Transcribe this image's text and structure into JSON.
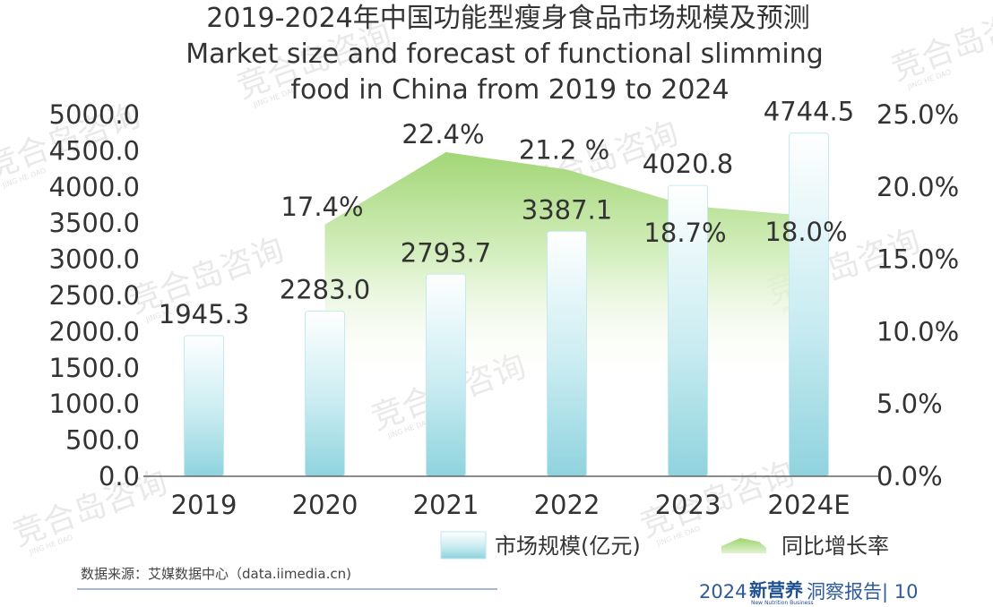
{
  "chart_data": {
    "type": "bar",
    "title": "2019-2024年中国功能型瘦身食品市场规模及预测",
    "subtitle_lines": [
      "Market size and forecast of functional slimming",
      "food in China from 2019 to 2024"
    ],
    "categories": [
      "2019",
      "2020",
      "2021",
      "2022",
      "2023",
      "2024E"
    ],
    "series": [
      {
        "name": "市场规模(亿元)",
        "type": "bar",
        "axis": "left",
        "values": [
          1945.3,
          2283.0,
          2793.7,
          3387.1,
          4020.8,
          4744.5
        ],
        "labels": [
          "1945.3",
          "2283.0",
          "2793.7",
          "3387.1",
          "4020.8",
          "4744.5"
        ],
        "color": "#9ed9e3"
      },
      {
        "name": "同比增长率",
        "type": "area",
        "axis": "right",
        "values": [
          null,
          17.4,
          22.4,
          21.2,
          18.7,
          18.0
        ],
        "labels": [
          "",
          "17.4%",
          "22.4%",
          "21.2 %",
          "18.7%",
          "18.0%"
        ],
        "color": "#a8d87a"
      }
    ],
    "y_left": {
      "min": 0,
      "max": 5000,
      "ticks": [
        "0.0",
        "500.0",
        "1000.0",
        "1500.0",
        "2000.0",
        "2500.0",
        "3000.0",
        "3500.0",
        "4000.0",
        "4500.0",
        "5000.0"
      ]
    },
    "y_right": {
      "min": 0,
      "max": 25,
      "ticks": [
        "0.0%",
        "5.0%",
        "10.0%",
        "15.0%",
        "20.0%",
        "25.0%"
      ]
    },
    "grid": false,
    "legend_position": "bottom-right"
  },
  "source": "数据来源：艾媒数据中心（data.iimedia.cn)",
  "footer": {
    "prefix": "2024",
    "brand": "新营养",
    "brand_sub": "New Nutrition Business",
    "suffix": "洞察报告| 10"
  },
  "watermark": {
    "text": "竞合岛咨询",
    "sub": "JING HE DAO"
  }
}
